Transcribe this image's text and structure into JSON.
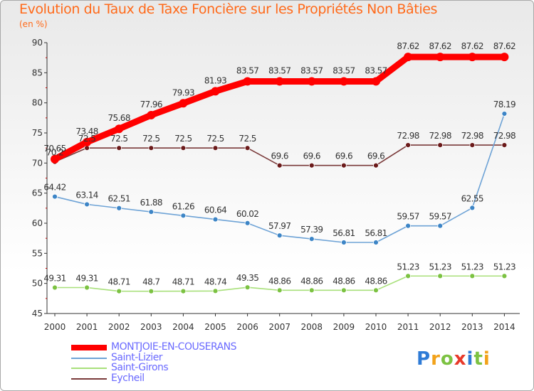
{
  "chart_data": {
    "type": "line",
    "title": "Evolution du Taux de Taxe Foncière sur les Propriétés Non Bâties",
    "subtitle": "(en %)",
    "xlabel": "",
    "ylabel": "",
    "ylim": [
      45,
      90
    ],
    "yticks": [
      45,
      50,
      55,
      60,
      65,
      70,
      75,
      80,
      85,
      90
    ],
    "x": [
      "2000",
      "2001",
      "2002",
      "2003",
      "2004",
      "2005",
      "2006",
      "2007",
      "2008",
      "2009",
      "2010",
      "2011",
      "2012",
      "2013",
      "2014"
    ],
    "series": [
      {
        "name": "MONTJOIE-EN-COUSERANS",
        "color": "#ff0000",
        "marker_color": "#ff0000",
        "values": [
          70.65,
          73.48,
          75.68,
          77.96,
          79.93,
          81.93,
          83.57,
          83.57,
          83.57,
          83.57,
          83.57,
          87.62,
          87.62,
          87.62,
          87.62
        ],
        "labels": [
          "70.65",
          "73.48",
          "75.68",
          "77.96",
          "79.93",
          "81.93",
          "83.57",
          "83.57",
          "83.57",
          "83.57",
          "83.57",
          "87.62",
          "87.62",
          "87.62",
          "87.62"
        ]
      },
      {
        "name": "Saint-Lizier",
        "color": "#6ea3d6",
        "marker_color": "#3d85c6",
        "values": [
          64.42,
          63.14,
          62.51,
          61.88,
          61.26,
          60.64,
          60.02,
          57.97,
          57.39,
          56.81,
          56.81,
          59.57,
          59.57,
          62.55,
          78.19
        ],
        "labels": [
          "64.42",
          "63.14",
          "62.51",
          "61.88",
          "61.26",
          "60.64",
          "60.02",
          "57.97",
          "57.39",
          "56.81",
          "56.81",
          "59.57",
          "59.57",
          "62.55",
          "78.19"
        ]
      },
      {
        "name": "Saint-Girons",
        "color": "#a8e07a",
        "marker_color": "#7cc242",
        "values": [
          49.31,
          49.31,
          48.71,
          48.7,
          48.71,
          48.74,
          49.35,
          48.86,
          48.86,
          48.86,
          48.86,
          51.23,
          51.23,
          51.23,
          51.23
        ],
        "labels": [
          "49.31",
          "49.31",
          "48.71",
          "48.7",
          "48.71",
          "48.74",
          "49.35",
          "48.86",
          "48.86",
          "48.86",
          "48.86",
          "51.23",
          "51.23",
          "51.23",
          "51.23"
        ]
      },
      {
        "name": "Eycheil",
        "color": "#7a3a3a",
        "marker_color": "#6b1a1a",
        "values": [
          70.2,
          72.5,
          72.5,
          72.5,
          72.5,
          72.5,
          72.5,
          69.6,
          69.6,
          69.6,
          69.6,
          72.98,
          72.98,
          72.98,
          72.98
        ],
        "labels": [
          "70.2",
          "72.5",
          "72.5",
          "72.5",
          "72.5",
          "72.5",
          "72.5",
          "69.6",
          "69.6",
          "69.6",
          "69.6",
          "72.98",
          "72.98",
          "72.98",
          "72.98"
        ]
      }
    ],
    "legend_position": "bottom-left",
    "grid": false
  },
  "logo": {
    "letters": [
      "P",
      "r",
      "o",
      "x",
      "i",
      "t",
      "i"
    ],
    "colors": [
      "#2e7bd6",
      "#f2a21a",
      "#7cc242",
      "#e8392a",
      "#2e7bd6",
      "#7cc242",
      "#f2a21a"
    ]
  }
}
